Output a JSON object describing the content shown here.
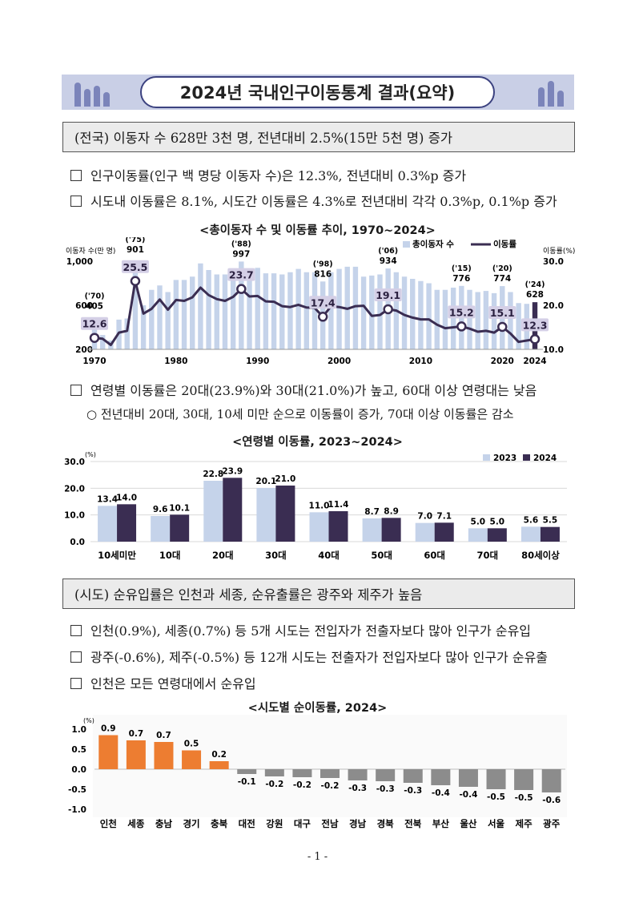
{
  "title": "2024년 국내인구이동통계 결과(요약)",
  "section1": {
    "heading": "(전국) 이동자 수 628만 3천 명, 전년대비 2.5%(15만 5천 명) 증가",
    "bullets": [
      "인구이동률(인구 백 명당 이동자 수)은 12.3%, 전년대비 0.3%p 증가",
      "시도내 이동률은 8.1%, 시도간 이동률은 4.3%로 전년대비 각각 0.3%p, 0.1%p 증가"
    ]
  },
  "chart1_title": "<총이동자 수 및 이동률 추이, 1970~2024>",
  "section2": {
    "bullets": [
      "연령별 이동률은 20대(23.9%)와 30대(21.0%)가 높고, 60대 이상 연령대는 낮음"
    ],
    "sub": "○  전년대비 20대, 30대, 10세 미만 순으로 이동률이 증가, 70대 이상 이동률은 감소"
  },
  "chart2_title": "<연령별 이동률, 2023~2024>",
  "section3": {
    "heading": "(시도) 순유입률은 인천과 세종, 순유출률은 광주와 제주가 높음",
    "bullets": [
      "인천(0.9%), 세종(0.7%) 등 5개 시도는 전입자가 전출자보다 많아 인구가 순유입",
      "광주(-0.6%), 제주(-0.5%) 등 12개 시도는 전출자가 전입자보다 많아 인구가 순유출",
      "인천은 모든 연령대에서 순유입"
    ]
  },
  "chart3_title": "<시도별 순이동률, 2024>",
  "page_number": "- 1 -",
  "chart_data": [
    {
      "type": "bar",
      "title": "<총이동자 수 및 이동률 추이, 1970~2024>",
      "ylabel": "이동자 수(만 명)",
      "y2label": "이동률(%)",
      "ylim": [
        200,
        1000
      ],
      "y2lim": [
        10,
        30
      ],
      "yticks": [
        "200",
        "600",
        "1,000"
      ],
      "y2ticks": [
        "10.0",
        "20.0",
        "30.0"
      ],
      "xticks": [
        "1970",
        "1980",
        "1990",
        "2000",
        "2010",
        "2020",
        "2024"
      ],
      "legend": [
        "총이동자 수",
        "이동률"
      ],
      "legend_position": "top",
      "bar_color": "#c5d3ea",
      "highlight_color": "#3a2d52",
      "line_color": "#3a2d52",
      "years": [
        1970,
        1971,
        1972,
        1973,
        1974,
        1975,
        1976,
        1977,
        1978,
        1979,
        1980,
        1981,
        1982,
        1983,
        1984,
        1985,
        1986,
        1987,
        1988,
        1989,
        1990,
        1991,
        1992,
        1993,
        1994,
        1995,
        1996,
        1997,
        1998,
        1999,
        2000,
        2001,
        2002,
        2003,
        2004,
        2005,
        2006,
        2007,
        2008,
        2009,
        2010,
        2011,
        2012,
        2013,
        2014,
        2015,
        2016,
        2017,
        2018,
        2019,
        2020,
        2021,
        2022,
        2023,
        2024
      ],
      "movers": [
        405,
        330,
        280,
        470,
        480,
        901,
        600,
        740,
        780,
        720,
        830,
        830,
        860,
        980,
        920,
        880,
        880,
        880,
        997,
        920,
        940,
        890,
        890,
        880,
        900,
        930,
        900,
        900,
        816,
        900,
        930,
        950,
        950,
        860,
        870,
        880,
        934,
        900,
        860,
        840,
        820,
        800,
        740,
        740,
        760,
        776,
        740,
        720,
        730,
        710,
        774,
        720,
        620,
        613,
        628
      ],
      "rate": [
        12.6,
        12.4,
        11.0,
        13.8,
        14.2,
        25.5,
        18.1,
        19.2,
        21.3,
        19.0,
        21.2,
        21.0,
        21.8,
        24.0,
        22.3,
        21.4,
        21.0,
        21.9,
        23.7,
        22.0,
        22.1,
        20.9,
        20.8,
        19.8,
        19.6,
        20.1,
        19.5,
        19.4,
        17.4,
        19.8,
        19.6,
        19.2,
        19.8,
        19.9,
        17.6,
        17.8,
        19.1,
        18.8,
        17.8,
        17.2,
        16.8,
        16.8,
        15.6,
        14.8,
        15.0,
        15.2,
        14.7,
        14.0,
        14.2,
        13.8,
        15.1,
        13.6,
        11.7,
        12.0,
        12.3
      ],
      "annotations": [
        {
          "year": 1970,
          "label": "('70)",
          "movers": "405",
          "rate": "12.6"
        },
        {
          "year": 1975,
          "label": "('75)",
          "movers": "901",
          "rate": "25.5"
        },
        {
          "year": 1988,
          "label": "('88)",
          "movers": "997",
          "rate": "23.7"
        },
        {
          "year": 1998,
          "label": "('98)",
          "movers": "816",
          "rate": "17.4"
        },
        {
          "year": 2006,
          "label": "('06)",
          "movers": "934",
          "rate": "19.1"
        },
        {
          "year": 2015,
          "label": "('15)",
          "movers": "776",
          "rate": "15.2"
        },
        {
          "year": 2020,
          "label": "('20)",
          "movers": "774",
          "rate": "15.1"
        },
        {
          "year": 2024,
          "label": "('24)",
          "movers": "628",
          "rate": "12.3"
        }
      ]
    },
    {
      "type": "bar",
      "title": "<연령별 이동률, 2023~2024>",
      "ylabel": "(%)",
      "ylim": [
        0,
        30
      ],
      "yticks": [
        "0.0",
        "10.0",
        "20.0",
        "30.0"
      ],
      "categories": [
        "10세미만",
        "10대",
        "20대",
        "30대",
        "40대",
        "50대",
        "60대",
        "70대",
        "80세이상"
      ],
      "legend_position": "top-right",
      "series": [
        {
          "name": "2023",
          "color": "#c5d3ea",
          "values": [
            13.4,
            9.6,
            22.8,
            20.1,
            11.0,
            8.7,
            7.0,
            5.0,
            5.6
          ]
        },
        {
          "name": "2024",
          "color": "#3a2d52",
          "values": [
            14.0,
            10.1,
            23.9,
            21.0,
            11.4,
            8.9,
            7.1,
            5.0,
            5.5
          ]
        }
      ],
      "value_labels": [
        [
          "13.4",
          "9.6",
          "22.8",
          "20.1",
          "11.0",
          "8.7",
          "7.0",
          "5.0",
          "5.6"
        ],
        [
          "14.0",
          "10.1",
          "23.9",
          "21.0",
          "11.4",
          "8.9",
          "7.1",
          "5.0",
          "5.5"
        ]
      ]
    },
    {
      "type": "bar",
      "title": "<시도별 순이동률, 2024>",
      "ylabel": "(%)",
      "ylim": [
        -1.0,
        1.0
      ],
      "yticks": [
        "1.0",
        "0.5",
        "0.0",
        "-0.5",
        "-1.0"
      ],
      "categories": [
        "인천",
        "세종",
        "충남",
        "경기",
        "충북",
        "대전",
        "강원",
        "대구",
        "전남",
        "경남",
        "경북",
        "전북",
        "부산",
        "울산",
        "서울",
        "제주",
        "광주"
      ],
      "values": [
        0.85,
        0.72,
        0.68,
        0.47,
        0.2,
        -0.12,
        -0.18,
        -0.2,
        -0.22,
        -0.28,
        -0.3,
        -0.34,
        -0.4,
        -0.44,
        -0.5,
        -0.52,
        -0.58
      ],
      "value_labels": [
        "0.9",
        "0.7",
        "0.7",
        "0.5",
        "0.2",
        "-0.1",
        "-0.2",
        "-0.2",
        "-0.2",
        "-0.3",
        "-0.3",
        "-0.3",
        "-0.4",
        "-0.4",
        "-0.5",
        "-0.5",
        "-0.6"
      ],
      "positive_color": "#ed7d31",
      "negative_color": "#8c8c8c"
    }
  ]
}
